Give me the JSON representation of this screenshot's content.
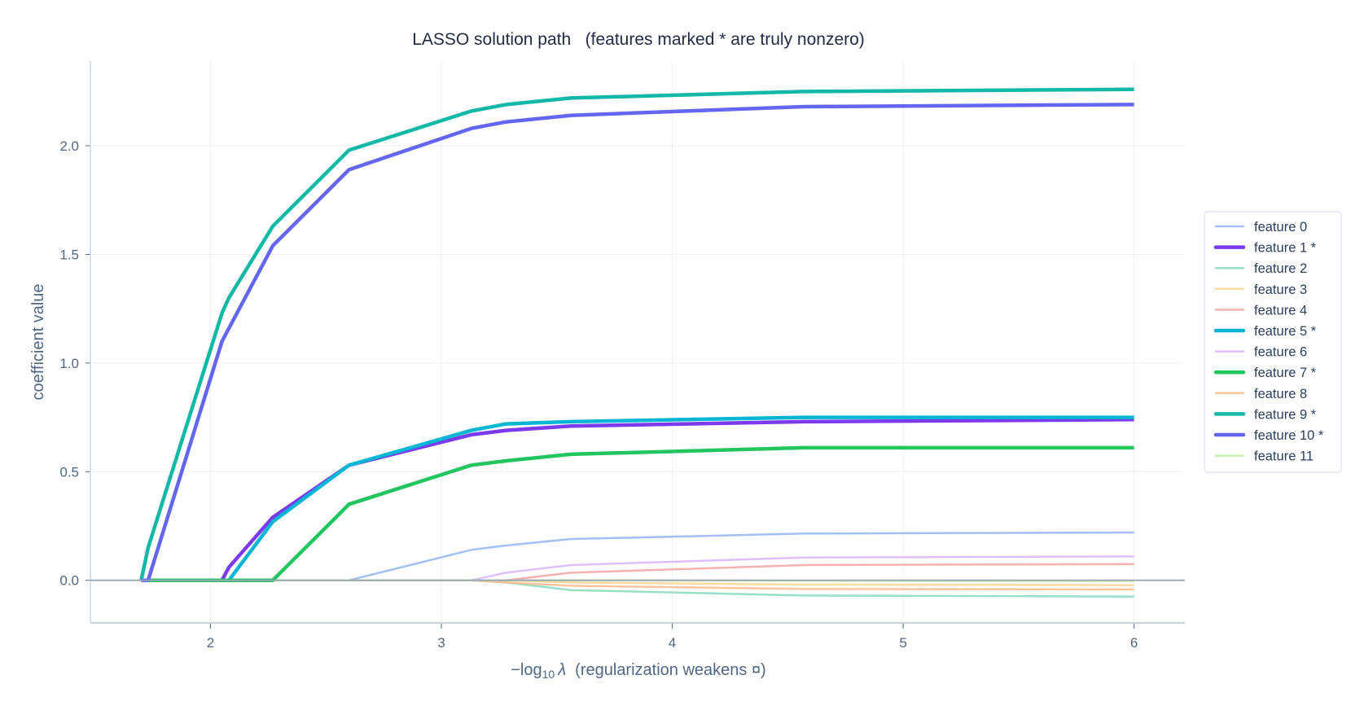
{
  "chart_data": {
    "type": "line",
    "title": "LASSO solution path   (features marked * are truly nonzero)",
    "xlabel": {
      "prefix": "−log",
      "sub": "10",
      "symbol": "λ",
      "suffix": "  (regularization weakens ¤)"
    },
    "ylabel": "coefficient value",
    "xlim": [
      1.48,
      6.22
    ],
    "ylim": [
      -0.196,
      2.39
    ],
    "xticks": [
      2,
      3,
      4,
      5,
      6
    ],
    "yticks": [
      "0.0",
      "0.5",
      "1.0",
      "1.5",
      "2.0"
    ],
    "grid": true,
    "legend": "right",
    "x": [
      1.7,
      1.73,
      2.05,
      2.08,
      2.27,
      2.6,
      3.13,
      3.28,
      3.56,
      4.57,
      6.0
    ],
    "series": [
      {
        "name": "feature 0",
        "color": "#93b4f5",
        "truly_nonzero": false,
        "values": [
          0,
          0,
          0,
          0,
          0,
          0,
          0.14,
          0.16,
          0.19,
          0.215,
          0.22
        ]
      },
      {
        "name": "feature 1 *",
        "color": "#7c3aed",
        "truly_nonzero": true,
        "values": [
          0,
          0,
          0,
          0.06,
          0.29,
          0.53,
          0.67,
          0.69,
          0.71,
          0.73,
          0.74
        ]
      },
      {
        "name": "feature 2",
        "color": "#86dcbd",
        "truly_nonzero": false,
        "values": [
          0,
          0,
          0,
          0,
          0,
          0,
          0,
          -0.01,
          -0.045,
          -0.07,
          -0.075
        ]
      },
      {
        "name": "feature 3",
        "color": "#fcd38d",
        "truly_nonzero": false,
        "values": [
          0,
          0,
          0,
          0,
          0,
          0,
          0,
          0,
          -0.01,
          -0.02,
          -0.022
        ]
      },
      {
        "name": "feature 4",
        "color": "#f5a3a3",
        "truly_nonzero": false,
        "values": [
          0,
          0,
          0,
          0,
          0,
          0,
          0,
          0,
          0.035,
          0.07,
          0.075
        ]
      },
      {
        "name": "feature 5 *",
        "color": "#06b6d4",
        "truly_nonzero": true,
        "values": [
          0,
          0,
          0,
          0,
          0.27,
          0.53,
          0.69,
          0.72,
          0.73,
          0.75,
          0.75
        ]
      },
      {
        "name": "feature 6",
        "color": "#d8b4fe",
        "truly_nonzero": false,
        "values": [
          0,
          0,
          0,
          0,
          0,
          0,
          0,
          0.035,
          0.07,
          0.105,
          0.11
        ]
      },
      {
        "name": "feature 7 *",
        "color": "#22c55e",
        "truly_nonzero": true,
        "values": [
          0,
          0,
          0,
          0,
          0,
          0.35,
          0.53,
          0.55,
          0.58,
          0.61,
          0.61
        ]
      },
      {
        "name": "feature 8",
        "color": "#fdba8c",
        "truly_nonzero": false,
        "values": [
          0,
          0,
          0,
          0,
          0,
          0,
          0,
          -0.01,
          -0.025,
          -0.04,
          -0.042
        ]
      },
      {
        "name": "feature 9 *",
        "color": "#14b8a6",
        "truly_nonzero": true,
        "values": [
          0,
          0.15,
          1.23,
          1.3,
          1.63,
          1.98,
          2.16,
          2.19,
          2.22,
          2.25,
          2.26
        ]
      },
      {
        "name": "feature 10 *",
        "color": "#6366f1",
        "truly_nonzero": true,
        "values": [
          0,
          0,
          1.1,
          1.16,
          1.54,
          1.89,
          2.08,
          2.11,
          2.14,
          2.18,
          2.19
        ]
      },
      {
        "name": "feature 11",
        "color": "#bef0a0",
        "truly_nonzero": false,
        "values": [
          0,
          0,
          0,
          0,
          0,
          0,
          0,
          0,
          0,
          -0.002,
          -0.003
        ]
      }
    ]
  }
}
